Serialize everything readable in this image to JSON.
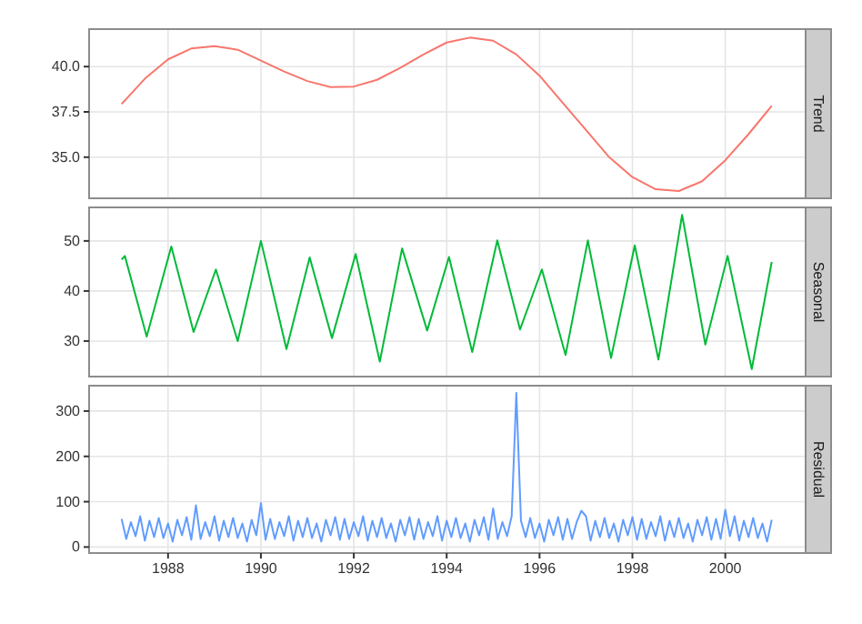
{
  "chart_data": [
    {
      "type": "line",
      "title": "Trend",
      "tick_labels": "y",
      "grid": true,
      "xlim": [
        1986.3,
        2001.73
      ],
      "xticks": [
        1988,
        1990,
        1992,
        1994,
        1996,
        1998,
        2000
      ],
      "ylim": [
        32.73,
        42.07
      ],
      "yticks": [
        {
          "value": 35,
          "label": "35.0"
        },
        {
          "value": 37.5,
          "label": "37.5"
        },
        {
          "value": 40,
          "label": "40.0"
        }
      ],
      "x": [
        1987,
        1987.5,
        1988,
        1988.5,
        1989,
        1989.5,
        1990,
        1990.5,
        1991,
        1991.5,
        1992,
        1992.5,
        1993,
        1993.5,
        1994,
        1994.5,
        1995,
        1995.5,
        1996,
        1996.5,
        1997,
        1997.5,
        1998,
        1998.5,
        1999,
        1999.5,
        2000,
        2000.5,
        2001
      ],
      "series": [
        {
          "color": "#f8766d",
          "values": [
            37.93,
            39.33,
            40.4,
            41.0,
            41.13,
            40.93,
            40.33,
            39.73,
            39.2,
            38.87,
            38.9,
            39.27,
            39.93,
            40.67,
            41.33,
            41.6,
            41.43,
            40.67,
            39.5,
            38.0,
            36.5,
            35.0,
            33.9,
            33.23,
            33.13,
            33.67,
            34.83,
            36.27,
            37.83
          ]
        }
      ]
    },
    {
      "type": "line",
      "title": "Seasonal",
      "tick_labels": "y",
      "grid": true,
      "xlim": [
        1986.3,
        2001.73
      ],
      "xticks": [
        1988,
        1990,
        1992,
        1994,
        1996,
        1998,
        2000
      ],
      "ylim": [
        22.9,
        56.7
      ],
      "yticks": [
        30,
        40,
        50
      ],
      "x": [
        1987.0,
        1987.07,
        1987.54,
        1988.07,
        1988.55,
        1989.03,
        1989.5,
        1990.0,
        1990.55,
        1991.05,
        1991.53,
        1992.04,
        1992.56,
        1993.04,
        1993.58,
        1994.05,
        1994.55,
        1995.09,
        1995.58,
        1996.05,
        1996.56,
        1997.04,
        1997.54,
        1998.05,
        1998.56,
        1999.07,
        1999.57,
        2000.05,
        2000.57,
        2001.0
      ],
      "series": [
        {
          "color": "#00ba38",
          "values": [
            46.3,
            47.0,
            30.9,
            48.9,
            31.8,
            44.3,
            30,
            50,
            28.4,
            46.7,
            30.6,
            47.4,
            25.9,
            48.5,
            32.1,
            46.8,
            27.8,
            50.1,
            32.3,
            44.3,
            27.2,
            50.1,
            26.6,
            49.1,
            26.3,
            55.2,
            29.3,
            47.0,
            24.4,
            45.8
          ]
        }
      ]
    },
    {
      "type": "line",
      "title": "Residual",
      "grid": true,
      "xlim": [
        1986.3,
        2001.73
      ],
      "xticks": [
        1988,
        1990,
        1992,
        1994,
        1996,
        1998,
        2000
      ],
      "ylim": [
        -13.3,
        356
      ],
      "yticks": [
        0,
        100,
        200,
        300
      ],
      "x": [
        1987.0,
        1987.1,
        1987.2,
        1987.3,
        1987.4,
        1987.5,
        1987.6,
        1987.7,
        1987.8,
        1987.9,
        1988.0,
        1988.1,
        1988.2,
        1988.3,
        1988.4,
        1988.5,
        1988.6,
        1988.7,
        1988.8,
        1988.9,
        1989.0,
        1989.1,
        1989.2,
        1989.3,
        1989.4,
        1989.5,
        1989.6,
        1989.7,
        1989.8,
        1989.9,
        1990.0,
        1990.1,
        1990.2,
        1990.3,
        1990.4,
        1990.5,
        1990.6,
        1990.7,
        1990.8,
        1990.9,
        1991.0,
        1991.1,
        1991.2,
        1991.3,
        1991.4,
        1991.5,
        1991.6,
        1991.7,
        1991.8,
        1991.9,
        1992.0,
        1992.1,
        1992.2,
        1992.3,
        1992.4,
        1992.5,
        1992.6,
        1992.7,
        1992.8,
        1992.9,
        1993.0,
        1993.1,
        1993.2,
        1993.3,
        1993.4,
        1993.5,
        1993.6,
        1993.7,
        1993.8,
        1993.9,
        1994.0,
        1994.1,
        1994.2,
        1994.3,
        1994.4,
        1994.5,
        1994.6,
        1994.7,
        1994.8,
        1994.9,
        1995.0,
        1995.1,
        1995.2,
        1995.3,
        1995.4,
        1995.5,
        1995.6,
        1995.7,
        1995.8,
        1995.9,
        1996.0,
        1996.1,
        1996.2,
        1996.3,
        1996.4,
        1996.5,
        1996.6,
        1996.7,
        1996.8,
        1996.9,
        1997.0,
        1997.1,
        1997.2,
        1997.3,
        1997.4,
        1997.5,
        1997.6,
        1997.7,
        1997.8,
        1997.9,
        1998.0,
        1998.1,
        1998.2,
        1998.3,
        1998.4,
        1998.5,
        1998.6,
        1998.7,
        1998.8,
        1998.9,
        1999.0,
        1999.1,
        1999.2,
        1999.3,
        1999.4,
        1999.5,
        1999.6,
        1999.7,
        1999.8,
        1999.9,
        2000.0,
        2000.1,
        2000.2,
        2000.3,
        2000.4,
        2000.5,
        2000.6,
        2000.7,
        2000.8,
        2000.9,
        2001.0
      ],
      "series": [
        {
          "color": "#619cff",
          "values": [
            62,
            18,
            55,
            24,
            68,
            14,
            58,
            22,
            64,
            20,
            52,
            12,
            60,
            26,
            66,
            16,
            92,
            18,
            55,
            24,
            68,
            14,
            58,
            22,
            64,
            20,
            52,
            12,
            60,
            26,
            97,
            16,
            62,
            18,
            55,
            24,
            68,
            14,
            58,
            22,
            64,
            20,
            52,
            12,
            60,
            26,
            66,
            16,
            62,
            18,
            55,
            24,
            68,
            14,
            58,
            22,
            64,
            20,
            52,
            12,
            60,
            26,
            66,
            16,
            62,
            18,
            55,
            24,
            68,
            14,
            58,
            22,
            64,
            20,
            52,
            12,
            60,
            26,
            66,
            16,
            85,
            18,
            55,
            24,
            68,
            340,
            58,
            22,
            64,
            20,
            52,
            12,
            60,
            26,
            66,
            16,
            62,
            18,
            55,
            80,
            68,
            14,
            58,
            22,
            64,
            20,
            52,
            12,
            60,
            26,
            66,
            16,
            62,
            18,
            55,
            24,
            68,
            14,
            58,
            22,
            64,
            20,
            52,
            12,
            60,
            26,
            66,
            16,
            62,
            18,
            82,
            24,
            68,
            14,
            58,
            22,
            64,
            20,
            52,
            12,
            60
          ]
        }
      ]
    }
  ]
}
